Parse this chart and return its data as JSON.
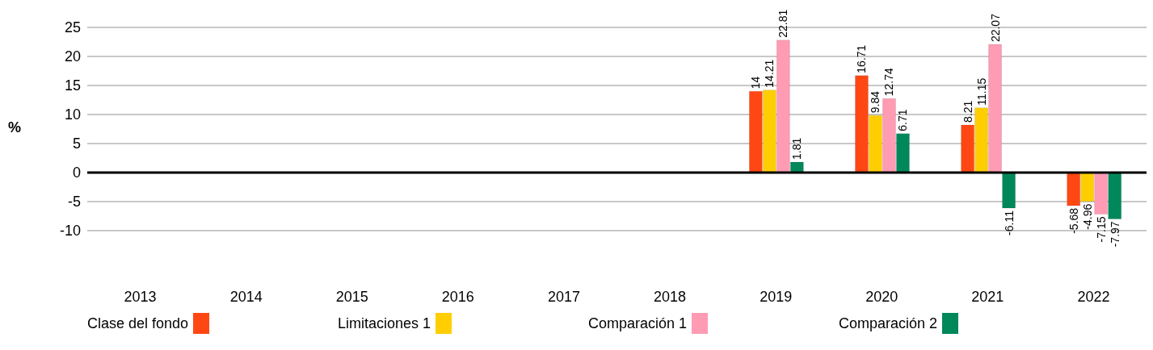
{
  "chart_data": {
    "type": "bar",
    "ylabel": "%",
    "categories": [
      "2013",
      "2014",
      "2015",
      "2016",
      "2017",
      "2018",
      "2019",
      "2020",
      "2021",
      "2022"
    ],
    "series": [
      {
        "name": "Clase del fondo",
        "color": "#ff4713",
        "values": [
          null,
          null,
          null,
          null,
          null,
          null,
          14,
          16.71,
          8.21,
          -5.68
        ]
      },
      {
        "name": "Limitaciones 1",
        "color": "#ffce00",
        "values": [
          null,
          null,
          null,
          null,
          null,
          null,
          14.21,
          9.84,
          11.15,
          -4.96
        ]
      },
      {
        "name": "Comparación 1",
        "color": "#ff9bb3",
        "values": [
          null,
          null,
          null,
          null,
          null,
          null,
          22.81,
          12.74,
          22.07,
          -7.15
        ]
      },
      {
        "name": "Comparación 2",
        "color": "#00875a",
        "values": [
          null,
          null,
          null,
          null,
          null,
          null,
          1.81,
          6.71,
          -6.11,
          -7.97
        ]
      }
    ],
    "ylim": [
      -10,
      25
    ],
    "yticks": [
      -10,
      -5,
      0,
      5,
      10,
      15,
      20,
      25
    ],
    "grid": "y",
    "legend": "bottom",
    "data_labels": true,
    "ref_lines": [
      {
        "axis": "y",
        "value": 0,
        "color": "#000000"
      }
    ]
  }
}
